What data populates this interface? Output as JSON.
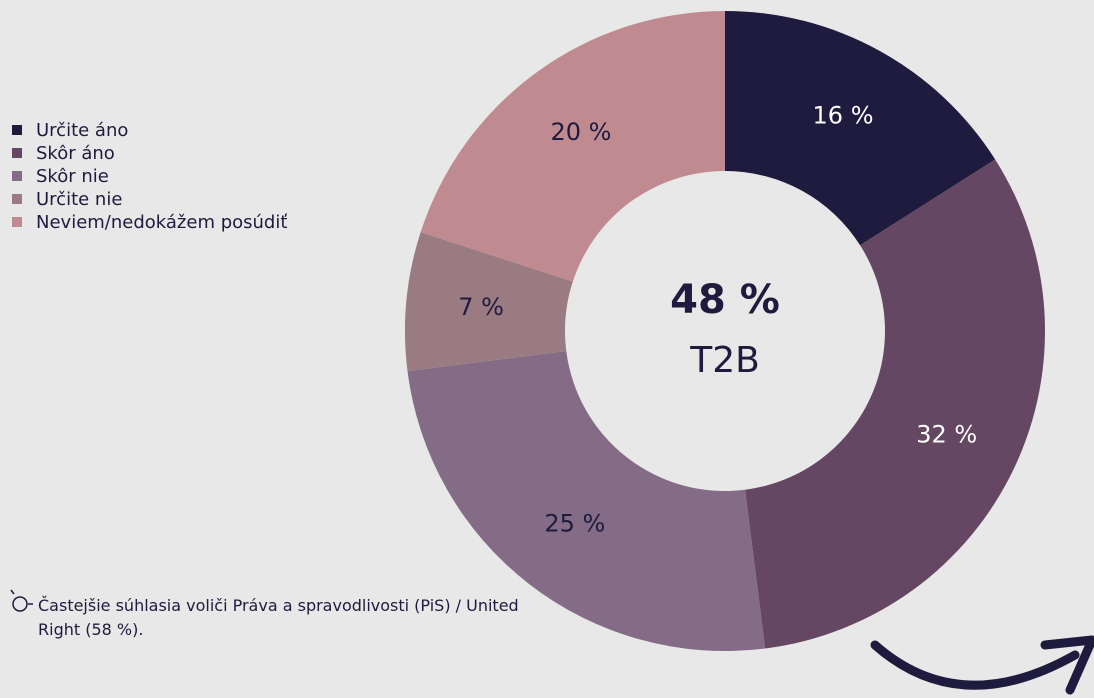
{
  "chart_data": {
    "type": "donut",
    "categories": [
      "Určite áno",
      "Skôr áno",
      "Skôr nie",
      "Určite nie",
      "Neviem/nedokážem posúdiť"
    ],
    "values": [
      16,
      32,
      25,
      7,
      20
    ],
    "value_labels": [
      "16 %",
      "32 %",
      "25 %",
      "7 %",
      "20 %"
    ],
    "colors": [
      "#1e1b3e",
      "#654663",
      "#846b86",
      "#9a7b82",
      "#bf8b91"
    ],
    "label_colors": [
      "#ffffff",
      "#ffffff",
      "#1e1b3e",
      "#1e1b3e",
      "#1e1b3e"
    ],
    "center_value": "48 %",
    "center_label": "T2B",
    "annotation": "Častejšie súhlasia voliči Práva a spravodlivosti (PiS) / United Right (58 %)."
  }
}
